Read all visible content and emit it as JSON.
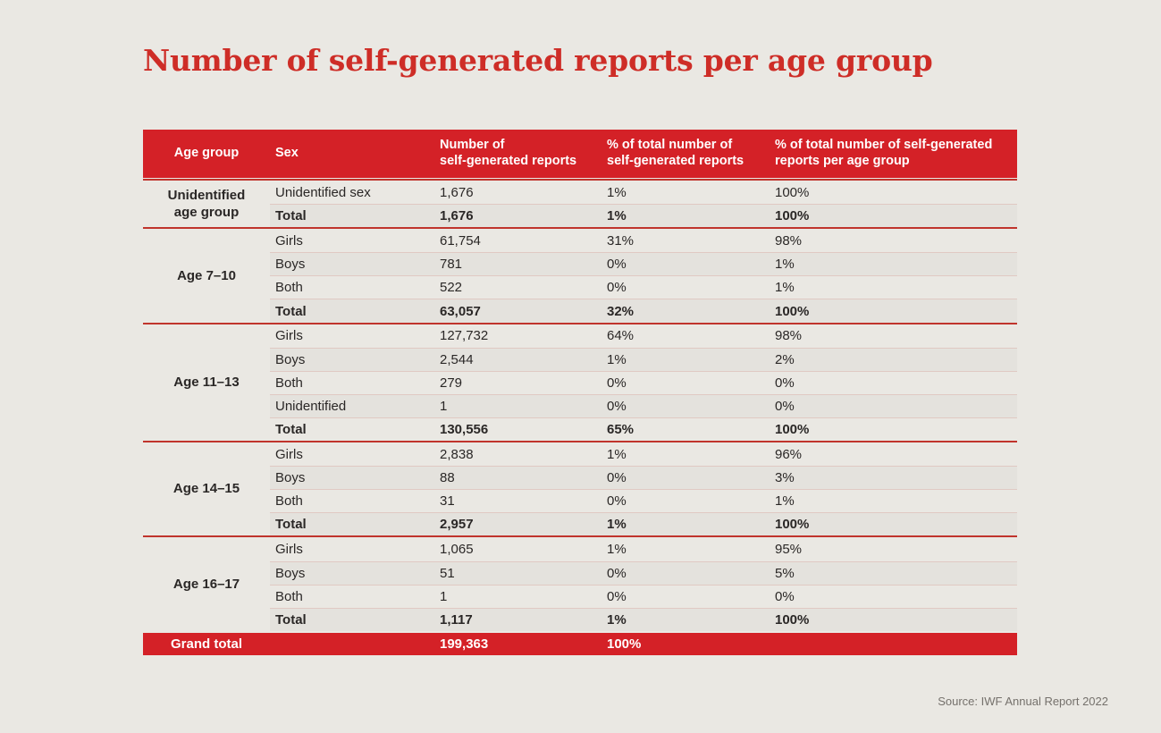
{
  "page": {
    "title": "Number of self-generated reports per age group",
    "source": "Source: IWF Annual Report 2022"
  },
  "colors": {
    "accent_red": "#d42127",
    "group_border_red": "#c0342c",
    "row_divider_pink": "#e0c9c3",
    "background": "#eae8e3",
    "header_text": "#ffffff",
    "body_text": "#2a2726",
    "title_red": "#ce2d27",
    "source_gray": "#75716c"
  },
  "chart_data": {
    "type": "table",
    "title": "Number of self-generated reports per age group",
    "columns": [
      "Age group",
      "Sex",
      "Number of\nself-generated reports",
      "% of total number of\nself-generated reports",
      "% of total number of self-generated\nreports per age group"
    ],
    "groups": [
      {
        "age_group": "Unidentified\nage group",
        "rows": [
          {
            "sex": "Unidentified sex",
            "number": "1,676",
            "pct_total": "1%",
            "pct_per_age_group": "100%",
            "is_total": false
          },
          {
            "sex": "Total",
            "number": "1,676",
            "pct_total": "1%",
            "pct_per_age_group": "100%",
            "is_total": true
          }
        ]
      },
      {
        "age_group": "Age 7–10",
        "rows": [
          {
            "sex": "Girls",
            "number": "61,754",
            "pct_total": "31%",
            "pct_per_age_group": "98%",
            "is_total": false
          },
          {
            "sex": "Boys",
            "number": "781",
            "pct_total": "0%",
            "pct_per_age_group": "1%",
            "is_total": false
          },
          {
            "sex": "Both",
            "number": "522",
            "pct_total": "0%",
            "pct_per_age_group": "1%",
            "is_total": false
          },
          {
            "sex": "Total",
            "number": "63,057",
            "pct_total": "32%",
            "pct_per_age_group": "100%",
            "is_total": true
          }
        ]
      },
      {
        "age_group": "Age 11–13",
        "rows": [
          {
            "sex": "Girls",
            "number": "127,732",
            "pct_total": "64%",
            "pct_per_age_group": "98%",
            "is_total": false
          },
          {
            "sex": "Boys",
            "number": "2,544",
            "pct_total": "1%",
            "pct_per_age_group": "2%",
            "is_total": false
          },
          {
            "sex": "Both",
            "number": "279",
            "pct_total": "0%",
            "pct_per_age_group": "0%",
            "is_total": false
          },
          {
            "sex": "Unidentified",
            "number": "1",
            "pct_total": "0%",
            "pct_per_age_group": "0%",
            "is_total": false
          },
          {
            "sex": "Total",
            "number": "130,556",
            "pct_total": "65%",
            "pct_per_age_group": "100%",
            "is_total": true
          }
        ]
      },
      {
        "age_group": "Age 14–15",
        "rows": [
          {
            "sex": "Girls",
            "number": "2,838",
            "pct_total": "1%",
            "pct_per_age_group": "96%",
            "is_total": false
          },
          {
            "sex": "Boys",
            "number": "88",
            "pct_total": "0%",
            "pct_per_age_group": "3%",
            "is_total": false
          },
          {
            "sex": "Both",
            "number": "31",
            "pct_total": "0%",
            "pct_per_age_group": "1%",
            "is_total": false
          },
          {
            "sex": "Total",
            "number": "2,957",
            "pct_total": "1%",
            "pct_per_age_group": "100%",
            "is_total": true
          }
        ]
      },
      {
        "age_group": "Age 16–17",
        "rows": [
          {
            "sex": "Girls",
            "number": "1,065",
            "pct_total": "1%",
            "pct_per_age_group": "95%",
            "is_total": false
          },
          {
            "sex": "Boys",
            "number": "51",
            "pct_total": "0%",
            "pct_per_age_group": "5%",
            "is_total": false
          },
          {
            "sex": "Both",
            "number": "1",
            "pct_total": "0%",
            "pct_per_age_group": "0%",
            "is_total": false
          },
          {
            "sex": "Total",
            "number": "1,117",
            "pct_total": "1%",
            "pct_per_age_group": "100%",
            "is_total": true
          }
        ]
      }
    ],
    "grand_total": {
      "label": "Grand total",
      "sex": "",
      "number": "199,363",
      "pct_total": "100%",
      "pct_per_age_group": ""
    }
  }
}
